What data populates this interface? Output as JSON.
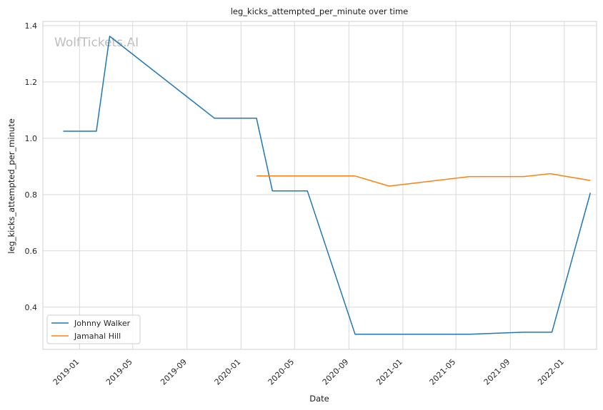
{
  "watermark": "WolfTickets.AI",
  "chart_data": {
    "type": "line",
    "title": "leg_kicks_attempted_per_minute over time",
    "xlabel": "Date",
    "ylabel": "leg_kicks_attempted_per_minute",
    "x_axis_type": "date",
    "xlim": [
      "2018-10-10",
      "2022-03-15"
    ],
    "ylim": [
      0.25,
      1.415
    ],
    "x_ticks": [
      "2019-01",
      "2019-05",
      "2019-09",
      "2020-01",
      "2020-05",
      "2020-09",
      "2021-01",
      "2021-05",
      "2021-09",
      "2022-01"
    ],
    "y_ticks": [
      0.4,
      0.6,
      0.8,
      1.0,
      1.2,
      1.4
    ],
    "y_tick_labels": [
      "0.4",
      "0.6",
      "0.8",
      "1.0",
      "1.2",
      "1.4"
    ],
    "grid": true,
    "legend_position": "lower-left",
    "series": [
      {
        "name": "Johnny Walker",
        "color": "#1f77b4",
        "x": [
          "2018-11-25",
          "2019-02-08",
          "2019-03-10",
          "2019-11-02",
          "2020-02-05",
          "2020-03-12",
          "2020-05-30",
          "2020-09-15",
          "2021-06-01",
          "2021-10-01",
          "2021-12-04",
          "2022-03-01"
        ],
        "y": [
          1.025,
          1.025,
          1.362,
          1.071,
          1.071,
          0.813,
          0.813,
          0.304,
          0.304,
          0.311,
          0.311,
          0.806
        ]
      },
      {
        "name": "Jamahal Hill",
        "color": "#ff7f0e",
        "x": [
          "2020-02-05",
          "2020-09-15",
          "2020-12-01",
          "2021-06-01",
          "2021-10-01",
          "2021-12-01",
          "2022-03-01"
        ],
        "y": [
          0.866,
          0.866,
          0.83,
          0.864,
          0.864,
          0.874,
          0.85
        ]
      }
    ]
  }
}
